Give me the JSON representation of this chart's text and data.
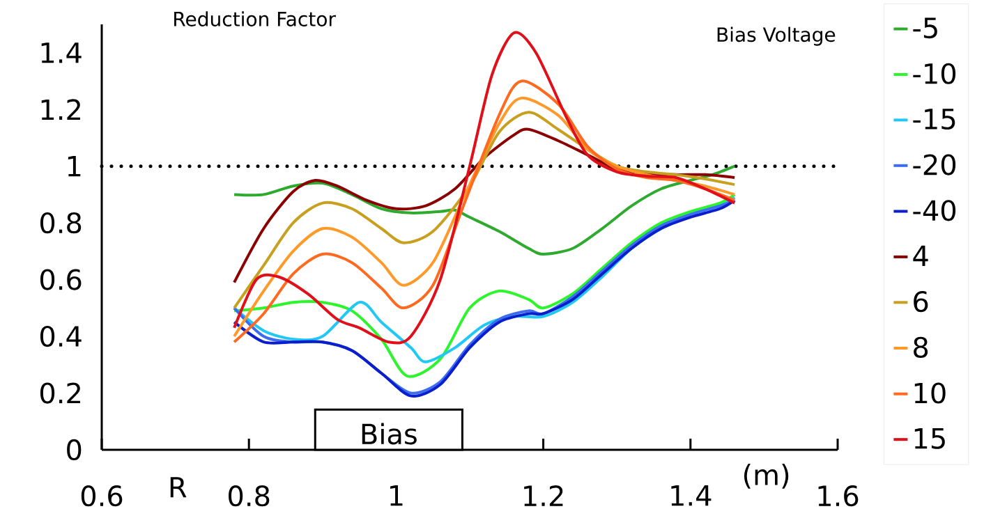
{
  "chart_data": {
    "type": "line",
    "ylabel": "Reduction Factor",
    "xlabel": "R",
    "legend_title": "Bias Voltage",
    "annotations": [
      "(m)"
    ],
    "bands": [
      {
        "axis": "x",
        "from": 0.89,
        "to": 1.09,
        "label": "Bias",
        "color": "#ffffff"
      }
    ],
    "xlim": [
      0.6,
      1.6
    ],
    "xticks": [
      0.6,
      0.8,
      1,
      1.2,
      1.4,
      1.6
    ],
    "ylim": [
      0,
      1.5
    ],
    "yticks": [
      0,
      0.2,
      0.4,
      0.6,
      0.8,
      1,
      1.2,
      1.4
    ],
    "legend": "right",
    "marker": "none",
    "ref_lines": [
      {
        "axis": "y",
        "value": 1,
        "line_style": "dotted",
        "color": "#000000"
      }
    ],
    "series": [
      {
        "name": "-5",
        "color": "#2eaa2e",
        "x": [
          0.78,
          0.82,
          0.86,
          0.9,
          0.94,
          0.98,
          1.02,
          1.06,
          1.08,
          1.1,
          1.14,
          1.18,
          1.2,
          1.24,
          1.28,
          1.32,
          1.36,
          1.4,
          1.43,
          1.46
        ],
        "values": [
          0.9,
          0.9,
          0.93,
          0.94,
          0.9,
          0.85,
          0.835,
          0.84,
          0.845,
          0.82,
          0.77,
          0.71,
          0.69,
          0.71,
          0.78,
          0.86,
          0.92,
          0.95,
          0.97,
          1.0
        ]
      },
      {
        "name": "-10",
        "color": "#2cf52c",
        "x": [
          0.78,
          0.82,
          0.86,
          0.9,
          0.94,
          0.98,
          1.015,
          1.06,
          1.1,
          1.14,
          1.18,
          1.2,
          1.24,
          1.28,
          1.32,
          1.36,
          1.4,
          1.44,
          1.46
        ],
        "values": [
          0.49,
          0.5,
          0.52,
          0.52,
          0.49,
          0.39,
          0.26,
          0.32,
          0.5,
          0.56,
          0.53,
          0.5,
          0.55,
          0.64,
          0.73,
          0.8,
          0.84,
          0.87,
          0.9
        ]
      },
      {
        "name": "-15",
        "color": "#22c8f5",
        "x": [
          0.78,
          0.82,
          0.86,
          0.9,
          0.95,
          0.98,
          1.02,
          1.04,
          1.08,
          1.12,
          1.16,
          1.2,
          1.24,
          1.28,
          1.32,
          1.36,
          1.4,
          1.44,
          1.46
        ],
        "values": [
          0.5,
          0.42,
          0.39,
          0.4,
          0.52,
          0.45,
          0.36,
          0.31,
          0.36,
          0.44,
          0.47,
          0.47,
          0.52,
          0.61,
          0.71,
          0.78,
          0.83,
          0.86,
          0.89
        ]
      },
      {
        "name": "-20",
        "color": "#3c6cf0",
        "x": [
          0.78,
          0.82,
          0.86,
          0.9,
          0.94,
          0.98,
          1.02,
          1.06,
          1.1,
          1.14,
          1.18,
          1.2,
          1.24,
          1.28,
          1.32,
          1.36,
          1.4,
          1.44,
          1.46
        ],
        "values": [
          0.5,
          0.4,
          0.38,
          0.38,
          0.35,
          0.27,
          0.2,
          0.24,
          0.37,
          0.46,
          0.49,
          0.48,
          0.54,
          0.63,
          0.72,
          0.79,
          0.83,
          0.86,
          0.88
        ]
      },
      {
        "name": "-40",
        "color": "#0a1ecc",
        "x": [
          0.78,
          0.82,
          0.86,
          0.9,
          0.94,
          0.98,
          1.02,
          1.06,
          1.1,
          1.14,
          1.18,
          1.2,
          1.24,
          1.28,
          1.32,
          1.36,
          1.4,
          1.44,
          1.46
        ],
        "values": [
          0.45,
          0.38,
          0.38,
          0.38,
          0.35,
          0.27,
          0.19,
          0.23,
          0.36,
          0.45,
          0.48,
          0.48,
          0.53,
          0.62,
          0.71,
          0.78,
          0.82,
          0.85,
          0.88
        ]
      },
      {
        "name": "4",
        "color": "#8b0000",
        "x": [
          0.78,
          0.82,
          0.86,
          0.89,
          0.92,
          0.96,
          1.0,
          1.04,
          1.08,
          1.12,
          1.16,
          1.18,
          1.22,
          1.26,
          1.3,
          1.34,
          1.38,
          1.42,
          1.46
        ],
        "values": [
          0.59,
          0.78,
          0.91,
          0.95,
          0.93,
          0.88,
          0.85,
          0.86,
          0.92,
          1.03,
          1.11,
          1.13,
          1.09,
          1.04,
          0.99,
          0.975,
          0.97,
          0.97,
          0.96
        ]
      },
      {
        "name": "6",
        "color": "#c8a020",
        "x": [
          0.78,
          0.82,
          0.86,
          0.9,
          0.94,
          0.98,
          1.01,
          1.05,
          1.1,
          1.14,
          1.18,
          1.22,
          1.26,
          1.3,
          1.34,
          1.38,
          1.42,
          1.46
        ],
        "values": [
          0.5,
          0.65,
          0.8,
          0.87,
          0.85,
          0.78,
          0.73,
          0.77,
          0.93,
          1.12,
          1.19,
          1.13,
          1.06,
          1.0,
          0.98,
          0.97,
          0.955,
          0.935
        ]
      },
      {
        "name": "8",
        "color": "#ff9a2a",
        "x": [
          0.78,
          0.82,
          0.86,
          0.9,
          0.94,
          0.98,
          1.01,
          1.05,
          1.09,
          1.14,
          1.17,
          1.22,
          1.26,
          1.3,
          1.34,
          1.38,
          1.42,
          1.46
        ],
        "values": [
          0.4,
          0.56,
          0.7,
          0.78,
          0.75,
          0.66,
          0.58,
          0.66,
          0.88,
          1.15,
          1.24,
          1.18,
          1.06,
          1.0,
          0.97,
          0.95,
          0.93,
          0.9
        ]
      },
      {
        "name": "10",
        "color": "#ff6a20",
        "x": [
          0.78,
          0.82,
          0.86,
          0.9,
          0.94,
          0.98,
          1.01,
          1.05,
          1.09,
          1.14,
          1.17,
          1.22,
          1.26,
          1.3,
          1.34,
          1.38,
          1.42,
          1.46
        ],
        "values": [
          0.38,
          0.48,
          0.62,
          0.69,
          0.66,
          0.57,
          0.5,
          0.58,
          0.85,
          1.18,
          1.3,
          1.22,
          1.07,
          0.99,
          0.96,
          0.95,
          0.92,
          0.88
        ]
      },
      {
        "name": "15",
        "color": "#e0101a",
        "x": [
          0.78,
          0.81,
          0.84,
          0.88,
          0.92,
          0.95,
          0.99,
          1.02,
          1.06,
          1.1,
          1.13,
          1.16,
          1.19,
          1.23,
          1.26,
          1.3,
          1.34,
          1.38,
          1.42,
          1.46
        ],
        "values": [
          0.43,
          0.6,
          0.61,
          0.55,
          0.46,
          0.43,
          0.38,
          0.4,
          0.6,
          1.0,
          1.32,
          1.47,
          1.4,
          1.18,
          1.04,
          0.98,
          0.965,
          0.96,
          0.92,
          0.87
        ]
      }
    ]
  }
}
